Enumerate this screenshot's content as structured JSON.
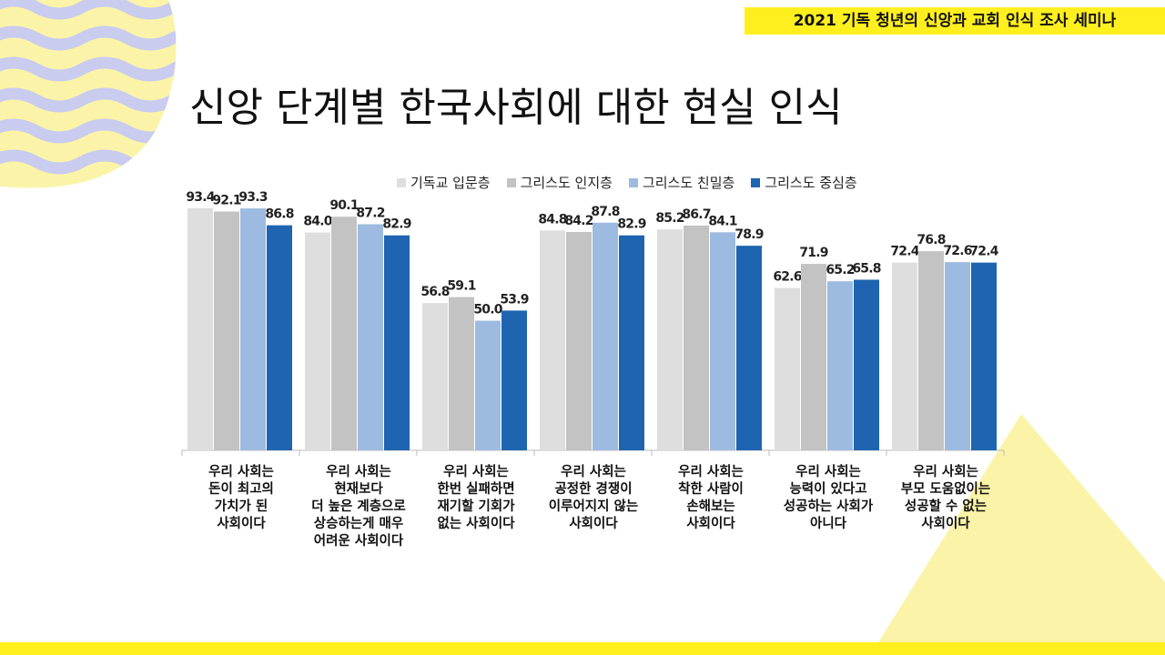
{
  "header": {
    "seminar_title": "2021 기독 청년의 신앙과 교회 인식 조사 세미나"
  },
  "page": {
    "title": "신앙 단계별 한국사회에 대한 현실 인식"
  },
  "colors": {
    "accent_yellow": "#ffef1e",
    "wave_blue": "#c9cbef",
    "wave_yellow": "#fbf4a8",
    "series": [
      "#dedede",
      "#c3c3c3",
      "#9dbbe0",
      "#1e64b0"
    ]
  },
  "chart_data": {
    "type": "bar",
    "title": "",
    "xlabel": "",
    "ylabel": "",
    "ylim": [
      0,
      100
    ],
    "grid": false,
    "legend_position": "top",
    "categories": [
      "우리 사회는\n돈이 최고의\n가치가 된\n사회이다",
      "우리 사회는\n현재보다\n더 높은 계층으로\n상승하는게 매우\n어려운 사회이다",
      "우리 사회는\n한번 실패하면\n재기할 기회가\n없는 사회이다",
      "우리 사회는\n공정한 경쟁이\n이루어지지 않는\n사회이다",
      "우리 사회는\n착한 사람이\n손해보는\n사회이다",
      "우리 사회는\n능력이 있다고\n성공하는 사회가\n아니다",
      "우리 사회는\n부모 도움없이는\n성공할 수 없는\n사회이다"
    ],
    "series": [
      {
        "name": "기독교 입문층",
        "values": [
          93.4,
          84.0,
          56.8,
          84.8,
          85.2,
          62.6,
          72.4
        ]
      },
      {
        "name": "그리스도 인지층",
        "values": [
          92.1,
          90.1,
          59.1,
          84.2,
          86.7,
          71.9,
          76.8
        ]
      },
      {
        "name": "그리스도 친밀층",
        "values": [
          93.3,
          87.2,
          50.0,
          87.8,
          84.1,
          65.2,
          72.6
        ]
      },
      {
        "name": "그리스도 중심층",
        "values": [
          86.8,
          82.9,
          53.9,
          82.9,
          78.9,
          65.8,
          72.4
        ]
      }
    ]
  }
}
